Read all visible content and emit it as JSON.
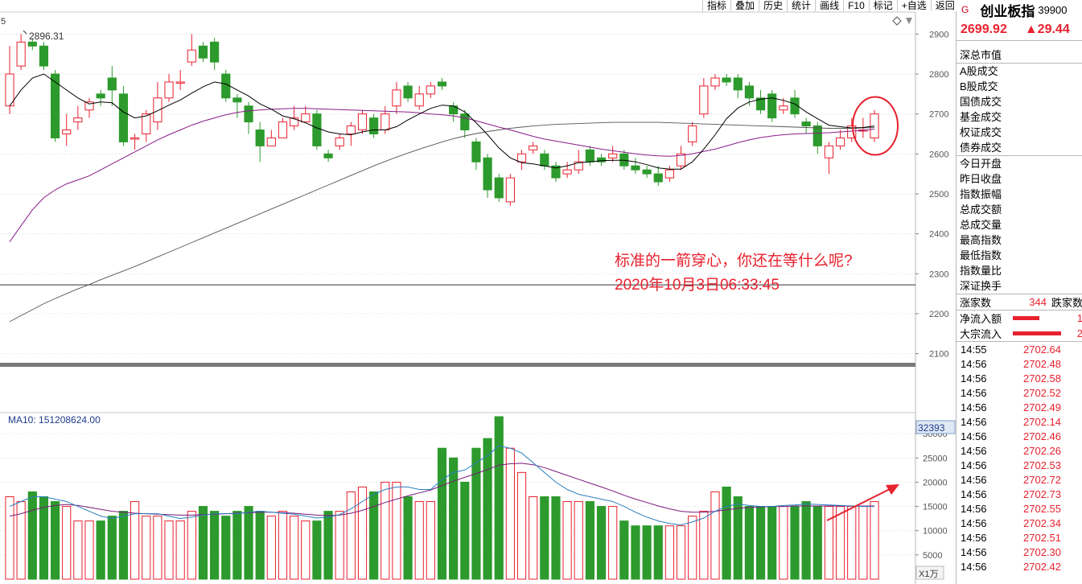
{
  "toolbar": [
    "指标",
    "叠加",
    "历史",
    "统计",
    "画线",
    "F10",
    "标记",
    "+自选",
    "返回"
  ],
  "header": {
    "index_marker": "G",
    "name": "创业板指",
    "code": "39900"
  },
  "quote": {
    "price": "2699.92",
    "change": "▲29.44"
  },
  "stats_top": "深总市值",
  "market_items": [
    "A股成交",
    "B股成交",
    "国债成交",
    "基金成交",
    "权证成交",
    "债券成交"
  ],
  "index_items": [
    "今日开盘",
    "昨日收盘",
    "指数振幅",
    "总成交额",
    "总成交量",
    "最高指数",
    "最低指数",
    "指数量比",
    "深证换手"
  ],
  "breadth": {
    "up_label": "涨家数",
    "up_value": "344",
    "down_label": "跌家数"
  },
  "flows": [
    {
      "label": "净流入额",
      "value": "1",
      "ratio": 0.55
    },
    {
      "label": "大宗流入",
      "value": "2",
      "ratio": 1.0
    }
  ],
  "ticks": [
    {
      "time": "14:55",
      "price": "2702.64"
    },
    {
      "time": "14:56",
      "price": "2702.48"
    },
    {
      "time": "14:56",
      "price": "2702.58"
    },
    {
      "time": "14:56",
      "price": "2702.52"
    },
    {
      "time": "14:56",
      "price": "2702.49"
    },
    {
      "time": "14:56",
      "price": "2702.14"
    },
    {
      "time": "14:56",
      "price": "2702.46"
    },
    {
      "time": "14:56",
      "price": "2702.26"
    },
    {
      "time": "14:56",
      "price": "2702.53"
    },
    {
      "time": "14:56",
      "price": "2702.72"
    },
    {
      "time": "14:56",
      "price": "2702.73"
    },
    {
      "time": "14:56",
      "price": "2702.55"
    },
    {
      "time": "14:56",
      "price": "2702.34"
    },
    {
      "time": "14:56",
      "price": "2702.51"
    },
    {
      "time": "14:56",
      "price": "2702.30"
    },
    {
      "time": "14:56",
      "price": "2702.42"
    }
  ],
  "annotation": {
    "line1": "标准的一箭穿心，你还在等什么呢?",
    "line2": "2020年10月3日06:33:45"
  },
  "top_left_label": "5",
  "peak_label": "2896.31",
  "vol_label": "MA10: 151208624.00",
  "vol_cur": "32393",
  "vol_unit": "X1万",
  "colors": {
    "up": "#e8212e",
    "down": "#2c9a2c",
    "ma_short": "#000000",
    "ma_mid": "#8a1c8a",
    "ma_long": "#555555",
    "vol_ma1": "#2a7fc0",
    "vol_ma2": "#7a1a7a"
  },
  "chart_data": [
    {
      "type": "candlestick",
      "y_ticks": [
        2100,
        2200,
        2300,
        2400,
        2500,
        2600,
        2700,
        2800,
        2900
      ],
      "ylim": [
        2075,
        2945
      ],
      "reference_level": 2272,
      "candles": [
        [
          2720,
          2800,
          2870,
          2700
        ],
        [
          2820,
          2880,
          2900,
          2810
        ],
        [
          2880,
          2870,
          2890,
          2860
        ],
        [
          2870,
          2820,
          2880,
          2810
        ],
        [
          2800,
          2640,
          2810,
          2630
        ],
        [
          2650,
          2660,
          2700,
          2620
        ],
        [
          2680,
          2690,
          2720,
          2660
        ],
        [
          2710,
          2730,
          2740,
          2690
        ],
        [
          2750,
          2740,
          2760,
          2720
        ],
        [
          2790,
          2760,
          2820,
          2720
        ],
        [
          2750,
          2630,
          2770,
          2620
        ],
        [
          2640,
          2640,
          2650,
          2610
        ],
        [
          2650,
          2700,
          2710,
          2630
        ],
        [
          2680,
          2740,
          2780,
          2660
        ],
        [
          2740,
          2780,
          2800,
          2730
        ],
        [
          2780,
          2780,
          2810,
          2760
        ],
        [
          2830,
          2860,
          2900,
          2820
        ],
        [
          2870,
          2840,
          2880,
          2830
        ],
        [
          2880,
          2830,
          2890,
          2810
        ],
        [
          2800,
          2740,
          2810,
          2730
        ],
        [
          2740,
          2730,
          2750,
          2690
        ],
        [
          2720,
          2680,
          2730,
          2650
        ],
        [
          2660,
          2620,
          2680,
          2580
        ],
        [
          2620,
          2640,
          2660,
          2620
        ],
        [
          2640,
          2680,
          2690,
          2640
        ],
        [
          2670,
          2690,
          2720,
          2660
        ],
        [
          2680,
          2700,
          2720,
          2680
        ],
        [
          2700,
          2620,
          2710,
          2610
        ],
        [
          2600,
          2590,
          2610,
          2580
        ],
        [
          2620,
          2640,
          2650,
          2610
        ],
        [
          2650,
          2670,
          2680,
          2620
        ],
        [
          2660,
          2700,
          2710,
          2650
        ],
        [
          2690,
          2650,
          2700,
          2640
        ],
        [
          2660,
          2700,
          2720,
          2650
        ],
        [
          2720,
          2760,
          2780,
          2700
        ],
        [
          2770,
          2740,
          2780,
          2730
        ],
        [
          2720,
          2750,
          2770,
          2710
        ],
        [
          2750,
          2770,
          2780,
          2740
        ],
        [
          2780,
          2770,
          2790,
          2760
        ],
        [
          2720,
          2700,
          2730,
          2680
        ],
        [
          2700,
          2660,
          2710,
          2640
        ],
        [
          2630,
          2580,
          2640,
          2560
        ],
        [
          2590,
          2510,
          2600,
          2490
        ],
        [
          2540,
          2490,
          2550,
          2480
        ],
        [
          2480,
          2540,
          2550,
          2470
        ],
        [
          2580,
          2600,
          2610,
          2560
        ],
        [
          2610,
          2620,
          2630,
          2600
        ],
        [
          2600,
          2570,
          2610,
          2560
        ],
        [
          2570,
          2540,
          2580,
          2530
        ],
        [
          2550,
          2560,
          2580,
          2540
        ],
        [
          2560,
          2580,
          2610,
          2550
        ],
        [
          2610,
          2580,
          2620,
          2570
        ],
        [
          2590,
          2580,
          2600,
          2570
        ],
        [
          2590,
          2600,
          2620,
          2580
        ],
        [
          2600,
          2570,
          2610,
          2560
        ],
        [
          2570,
          2560,
          2590,
          2550
        ],
        [
          2560,
          2550,
          2570,
          2540
        ],
        [
          2550,
          2530,
          2570,
          2520
        ],
        [
          2540,
          2560,
          2570,
          2530
        ],
        [
          2570,
          2600,
          2620,
          2560
        ],
        [
          2630,
          2670,
          2680,
          2620
        ],
        [
          2700,
          2770,
          2790,
          2690
        ],
        [
          2770,
          2790,
          2800,
          2760
        ],
        [
          2790,
          2780,
          2800,
          2770
        ],
        [
          2790,
          2760,
          2800,
          2740
        ],
        [
          2770,
          2740,
          2780,
          2720
        ],
        [
          2740,
          2710,
          2760,
          2700
        ],
        [
          2750,
          2690,
          2760,
          2680
        ],
        [
          2710,
          2720,
          2740,
          2700
        ],
        [
          2740,
          2700,
          2760,
          2690
        ],
        [
          2680,
          2670,
          2690,
          2650
        ],
        [
          2670,
          2620,
          2680,
          2600
        ],
        [
          2590,
          2620,
          2630,
          2550
        ],
        [
          2620,
          2640,
          2660,
          2610
        ],
        [
          2640,
          2670,
          2690,
          2630
        ],
        [
          2660,
          2660,
          2690,
          2640
        ],
        [
          2640,
          2700,
          2710,
          2630
        ]
      ],
      "ma_short": [
        2720,
        2760,
        2790,
        2800,
        2780,
        2760,
        2740,
        2725,
        2730,
        2728,
        2705,
        2690,
        2695,
        2708,
        2722,
        2735,
        2752,
        2768,
        2780,
        2775,
        2760,
        2745,
        2725,
        2712,
        2695,
        2688,
        2678,
        2665,
        2655,
        2650,
        2648,
        2655,
        2660,
        2660,
        2668,
        2685,
        2700,
        2714,
        2722,
        2720,
        2705,
        2678,
        2648,
        2615,
        2590,
        2578,
        2575,
        2570,
        2565,
        2570,
        2578,
        2580,
        2583,
        2584,
        2584,
        2580,
        2573,
        2565,
        2562,
        2562,
        2580,
        2612,
        2648,
        2688,
        2715,
        2730,
        2737,
        2740,
        2734,
        2725,
        2705,
        2688,
        2672,
        2668,
        2665,
        2666,
        2670
      ],
      "ma_mid": [
        2380,
        2420,
        2460,
        2490,
        2510,
        2525,
        2535,
        2545,
        2560,
        2575,
        2590,
        2605,
        2620,
        2635,
        2648,
        2660,
        2672,
        2682,
        2690,
        2698,
        2704,
        2708,
        2710,
        2712,
        2713,
        2714,
        2714,
        2713,
        2712,
        2711,
        2710,
        2709,
        2708,
        2707,
        2706,
        2705,
        2703,
        2700,
        2698,
        2695,
        2690,
        2683,
        2675,
        2667,
        2660,
        2652,
        2644,
        2637,
        2632,
        2627,
        2622,
        2617,
        2612,
        2608,
        2604,
        2600,
        2597,
        2595,
        2594,
        2596,
        2600,
        2606,
        2612,
        2620,
        2628,
        2635,
        2641,
        2645,
        2648,
        2650,
        2651,
        2652,
        2653,
        2655,
        2657,
        2659,
        2662
      ],
      "ma_long": [
        2180,
        2195,
        2210,
        2225,
        2238,
        2250,
        2262,
        2273,
        2285,
        2296,
        2307,
        2318,
        2330,
        2342,
        2354,
        2366,
        2378,
        2390,
        2402,
        2414,
        2426,
        2438,
        2450,
        2462,
        2474,
        2486,
        2498,
        2510,
        2522,
        2534,
        2546,
        2558,
        2570,
        2581,
        2592,
        2602,
        2612,
        2621,
        2630,
        2638,
        2645,
        2651,
        2656,
        2660,
        2664,
        2667,
        2670,
        2672,
        2674,
        2675,
        2676,
        2677,
        2678,
        2679,
        2679,
        2679,
        2679,
        2679,
        2678,
        2677,
        2676,
        2675,
        2674,
        2673,
        2672,
        2671,
        2670,
        2669,
        2668,
        2667,
        2666,
        2665,
        2664,
        2664,
        2664,
        2665,
        2666
      ]
    },
    {
      "type": "bar",
      "y_ticks": [
        5000,
        10000,
        15000,
        20000,
        25000,
        30000
      ],
      "ylim": [
        0,
        34000
      ],
      "volume": [
        17000,
        16000,
        18000,
        17000,
        16000,
        15000,
        12000,
        12000,
        12000,
        13000,
        14000,
        16000,
        13000,
        13000,
        12000,
        12000,
        14000,
        15000,
        14000,
        13000,
        14000,
        15000,
        14000,
        13000,
        14000,
        13000,
        12000,
        12000,
        14000,
        14000,
        18000,
        19000,
        18000,
        20000,
        20000,
        17000,
        16000,
        16000,
        27000,
        25000,
        20000,
        27000,
        29000,
        33500,
        27000,
        22000,
        17000,
        17000,
        17000,
        16000,
        16000,
        16000,
        15000,
        15000,
        12000,
        11000,
        11000,
        11000,
        11000,
        11000,
        13000,
        14000,
        18000,
        19000,
        17000,
        15000,
        15000,
        15000,
        15000,
        15000,
        16000,
        15000,
        15000,
        15000,
        15000,
        15000,
        16000
      ],
      "vol_ma1": [
        15000,
        16000,
        17000,
        17000,
        16500,
        16000,
        15000,
        14000,
        13000,
        12500,
        13000,
        13500,
        13500,
        13500,
        13000,
        12500,
        12800,
        13200,
        13500,
        13500,
        13500,
        13800,
        14000,
        13800,
        13600,
        13400,
        13000,
        12600,
        12800,
        13300,
        14500,
        16000,
        17500,
        18500,
        19000,
        19000,
        18500,
        18500,
        20500,
        22000,
        22500,
        24000,
        25500,
        27500,
        27000,
        26000,
        24000,
        22000,
        20000,
        18500,
        17500,
        17000,
        16500,
        16000,
        15000,
        13800,
        12800,
        12000,
        11500,
        11200,
        11800,
        12600,
        14000,
        15000,
        15500,
        15200,
        15000,
        15000,
        15200,
        15300,
        15500,
        15400,
        15300,
        15200,
        15100,
        15000,
        15000
      ],
      "vol_ma2": [
        13000,
        13500,
        14200,
        14800,
        15200,
        15400,
        15200,
        14800,
        14400,
        14000,
        13800,
        13600,
        13500,
        13400,
        13300,
        13200,
        13200,
        13300,
        13400,
        13500,
        13600,
        13700,
        13800,
        13800,
        13700,
        13600,
        13400,
        13200,
        13100,
        13200,
        13600,
        14200,
        15000,
        15800,
        16500,
        17200,
        17800,
        18400,
        19300,
        20200,
        21000,
        21800,
        22600,
        23500,
        23800,
        23900,
        23600,
        23000,
        22200,
        21400,
        20600,
        19800,
        19000,
        18200,
        17300,
        16500,
        15800,
        15100,
        14500,
        14000,
        13800,
        13800,
        14000,
        14300,
        14600,
        14800,
        14900,
        15000,
        15000,
        15100,
        15100,
        15100,
        15100,
        15100,
        15100,
        15100,
        15100
      ]
    }
  ]
}
